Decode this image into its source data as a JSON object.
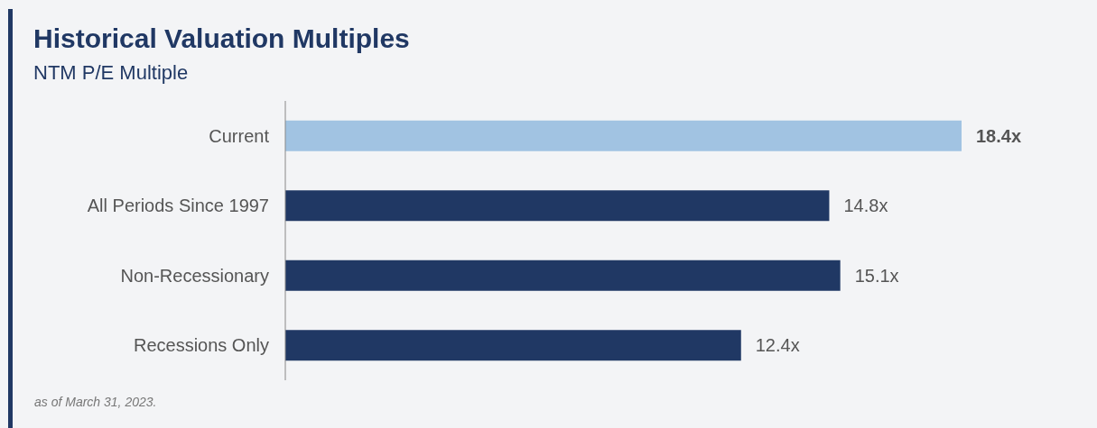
{
  "chart_data": {
    "type": "bar",
    "orientation": "horizontal",
    "title": "Historical Valuation Multiples",
    "subtitle": "NTM P/E Multiple",
    "categories": [
      "Current",
      "All Periods Since 1997",
      "Non-Recessionary",
      "Recessions Only"
    ],
    "values": [
      18.4,
      14.8,
      15.1,
      12.4
    ],
    "colors": [
      "#a1c3e2",
      "#203864",
      "#203864",
      "#203864"
    ],
    "value_labels": [
      "18.4x",
      "14.8x",
      "15.1x",
      "12.4x"
    ],
    "annotations": [
      "as of March 31, 2023."
    ]
  }
}
